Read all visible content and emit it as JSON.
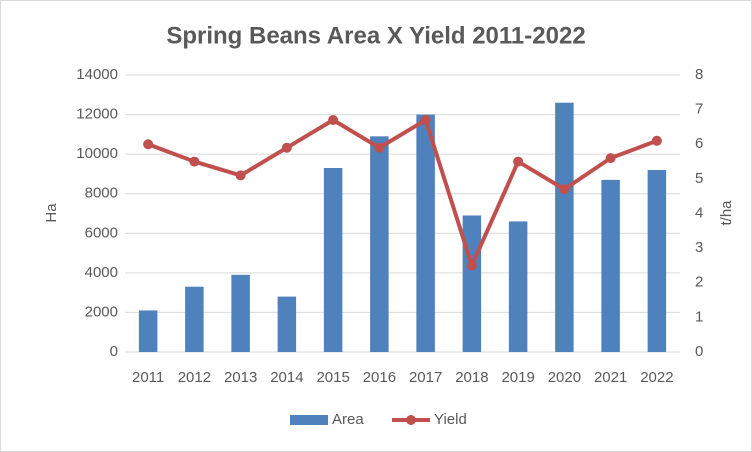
{
  "chart_data": {
    "type": "bar_line",
    "title": "Spring Beans Area X Yield 2011-2022",
    "categories": [
      "2011",
      "2012",
      "2013",
      "2014",
      "2015",
      "2016",
      "2017",
      "2018",
      "2019",
      "2020",
      "2021",
      "2022"
    ],
    "series": [
      {
        "name": "Area",
        "type": "bar",
        "color": "#4f81bd",
        "values": [
          2100,
          3300,
          3900,
          2800,
          9300,
          10900,
          12000,
          6900,
          6600,
          12600,
          8700,
          9200
        ]
      },
      {
        "name": "Yield",
        "type": "line",
        "axis": "y2",
        "color": "#c0504d",
        "values": [
          6.0,
          5.5,
          5.1,
          5.9,
          6.7,
          5.9,
          6.7,
          2.5,
          5.5,
          4.7,
          5.6,
          6.1
        ]
      }
    ],
    "y_label": "Ha",
    "y2_label": "t/ha",
    "ylim": [
      0,
      14000
    ],
    "yticks": [
      0,
      2000,
      4000,
      6000,
      8000,
      10000,
      12000,
      14000
    ],
    "y2lim": [
      0,
      8
    ],
    "y2ticks": [
      0,
      1,
      2,
      3,
      4,
      5,
      6,
      7,
      8
    ],
    "grid": true,
    "legend": "bottom"
  }
}
